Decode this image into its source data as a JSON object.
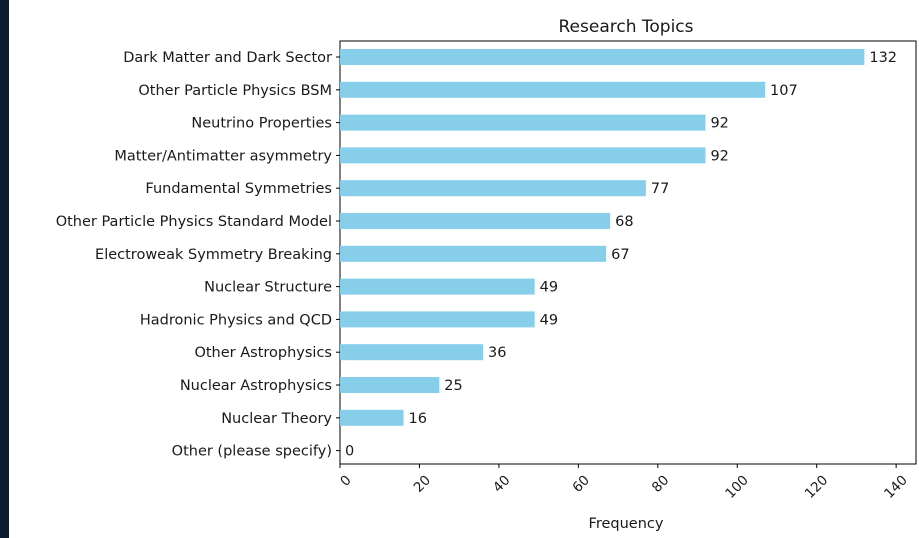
{
  "chart_data": {
    "type": "bar",
    "orientation": "horizontal",
    "title": "Research Topics",
    "xlabel": "Frequency",
    "ylabel": "",
    "xlim": [
      0,
      145
    ],
    "xticks": [
      0,
      20,
      40,
      60,
      80,
      100,
      120,
      140
    ],
    "bar_color": "#87ceeb",
    "categories": [
      "Dark Matter and Dark Sector",
      "Other Particle Physics BSM",
      "Neutrino Properties",
      "Matter/Antimatter asymmetry",
      "Fundamental Symmetries",
      "Other Particle Physics Standard Model",
      "Electroweak Symmetry Breaking",
      "Nuclear Structure",
      "Hadronic Physics and QCD",
      "Other Astrophysics",
      "Nuclear Astrophysics",
      "Nuclear Theory",
      "Other  (please specify)"
    ],
    "values": [
      132,
      107,
      92,
      92,
      77,
      68,
      67,
      49,
      49,
      36,
      25,
      16,
      0
    ],
    "grid": false,
    "legend": "none"
  },
  "colors": {
    "background": "#0d1b2e",
    "panel": "#ffffff",
    "bar": "#87ceeb"
  }
}
